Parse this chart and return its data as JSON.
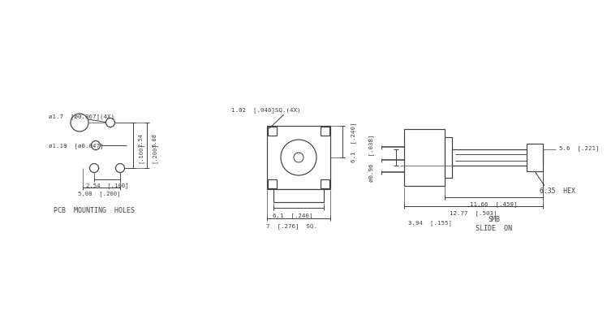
{
  "bg": "#ffffff",
  "lc": "#404040",
  "tc": "#404040",
  "fw": 7.2,
  "fh": 3.9,
  "dpi": 100,
  "annotations": {
    "pcb_label": "PCB  MOUNTING  HOLES",
    "smb_label": "SMB\nSLIDE  ON",
    "hex_label": "6.35  HEX",
    "dim_17": "ø1.7  [ø0.067](4X)",
    "dim_119": "ø1.19  [ø0.047]",
    "dim_254_100": "2.54  [.100]",
    "dim_508_200": "5.08  [.200]",
    "dim_102": "1.02  [.040]SQ.(4X)",
    "dim_61_240_v": "6.1  [.240]",
    "dim_61_240_h": "6.1  [.240]",
    "dim_7_276": "7  [.276]  SQ.",
    "dim_096": "ø0.96  [.038]",
    "dim_394": "3.94  [.155]",
    "dim_1166": "11.66  [.459]",
    "dim_1277": "12.77  [.503]",
    "dim_56": "5.6  [.221]"
  }
}
